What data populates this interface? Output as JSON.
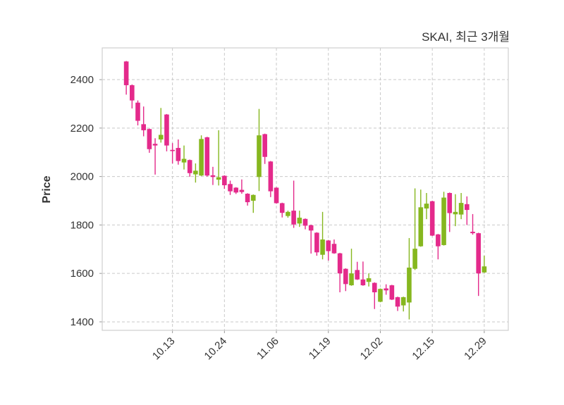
{
  "title": "SKAI, 최근 3개월",
  "colors": {
    "up": "#86b71f",
    "down": "#e42a8b",
    "grid": "#c9c9c9",
    "axis_border": "#cfcfcf",
    "tick_mark": "#999999",
    "tick_text": "#333333",
    "title_text": "#333333",
    "background": "#ffffff"
  },
  "chart_data": {
    "type": "candlestick",
    "title": "SKAI, 최근 3개월",
    "symbol": "SKAI",
    "period_label": "최근 3개월",
    "ylabel": "Price",
    "xlabel": "",
    "grid": true,
    "legend": "none",
    "y_ticks": [
      1400,
      1600,
      1800,
      2000,
      2200,
      2400
    ],
    "ylim": [
      1365,
      2531
    ],
    "x_tick_labels": [
      "10.13",
      "10.24",
      "11.06",
      "11.19",
      "12.02",
      "12.15",
      "12.29"
    ],
    "x_tick_indices": [
      8,
      17,
      26,
      35,
      44,
      53,
      62
    ],
    "ohlc_format": [
      "open",
      "high",
      "low",
      "close"
    ],
    "candles_ohlc": [
      [
        2475,
        2477,
        2338,
        2377
      ],
      [
        2377,
        2380,
        2281,
        2314
      ],
      [
        2305,
        2314,
        2211,
        2230
      ],
      [
        2216,
        2289,
        2166,
        2191
      ],
      [
        2196,
        2198,
        2098,
        2113
      ],
      [
        2135,
        2158,
        2008,
        2128
      ],
      [
        2153,
        2283,
        2140,
        2172
      ],
      [
        2256,
        2258,
        2104,
        2128
      ],
      [
        2110,
        2138,
        2054,
        2105
      ],
      [
        2118,
        2153,
        2049,
        2064
      ],
      [
        2058,
        2128,
        2029,
        2073
      ],
      [
        2068,
        2070,
        1999,
        2014
      ],
      [
        2009,
        2054,
        1975,
        2024
      ],
      [
        2004,
        2170,
        2002,
        2155
      ],
      [
        2162,
        2164,
        2000,
        2004
      ],
      [
        2005,
        2040,
        1965,
        1998
      ],
      [
        1987,
        2191,
        1963,
        1997
      ],
      [
        2003,
        2005,
        1949,
        1964
      ],
      [
        1969,
        1983,
        1924,
        1939
      ],
      [
        1954,
        1956,
        1928,
        1934
      ],
      [
        1945,
        1988,
        1929,
        1936
      ],
      [
        1929,
        1931,
        1880,
        1894
      ],
      [
        1900,
        1926,
        1850,
        1924
      ],
      [
        1998,
        2279,
        1940,
        2170
      ],
      [
        2175,
        2177,
        2052,
        2081
      ],
      [
        2062,
        2064,
        1915,
        1939
      ],
      [
        1954,
        1956,
        1888,
        1890
      ],
      [
        1890,
        1892,
        1831,
        1850
      ],
      [
        1837,
        1859,
        1830,
        1854
      ],
      [
        1859,
        1983,
        1788,
        1802
      ],
      [
        1806,
        1859,
        1792,
        1830
      ],
      [
        1825,
        1827,
        1782,
        1797
      ],
      [
        1799,
        1801,
        1682,
        1777
      ],
      [
        1768,
        1770,
        1673,
        1687
      ],
      [
        1677,
        1854,
        1658,
        1740
      ],
      [
        1736,
        1738,
        1653,
        1692
      ],
      [
        1722,
        1740,
        1681,
        1683
      ],
      [
        1683,
        1685,
        1522,
        1600
      ],
      [
        1619,
        1621,
        1527,
        1556
      ],
      [
        1551,
        1702,
        1549,
        1600
      ],
      [
        1614,
        1648,
        1573,
        1575
      ],
      [
        1575,
        1649,
        1549,
        1551
      ],
      [
        1565,
        1600,
        1546,
        1580
      ],
      [
        1561,
        1563,
        1453,
        1522
      ],
      [
        1483,
        1538,
        1481,
        1536
      ],
      [
        1538,
        1555,
        1512,
        1530
      ],
      [
        1551,
        1553,
        1490,
        1492
      ],
      [
        1502,
        1504,
        1445,
        1463
      ],
      [
        1468,
        1504,
        1443,
        1502
      ],
      [
        1480,
        1746,
        1410,
        1624
      ],
      [
        1619,
        1951,
        1614,
        1702
      ],
      [
        1712,
        1946,
        1710,
        1873
      ],
      [
        1868,
        1932,
        1824,
        1888
      ],
      [
        1898,
        1900,
        1754,
        1756
      ],
      [
        1761,
        1763,
        1658,
        1712
      ],
      [
        1717,
        1937,
        1715,
        1913
      ],
      [
        1932,
        1934,
        1771,
        1849
      ],
      [
        1844,
        1927,
        1795,
        1854
      ],
      [
        1843,
        1932,
        1824,
        1891
      ],
      [
        1886,
        1918,
        1800,
        1862
      ],
      [
        1772,
        1845,
        1760,
        1766
      ],
      [
        1766,
        1768,
        1507,
        1600
      ],
      [
        1604,
        1673,
        1602,
        1629
      ]
    ]
  }
}
